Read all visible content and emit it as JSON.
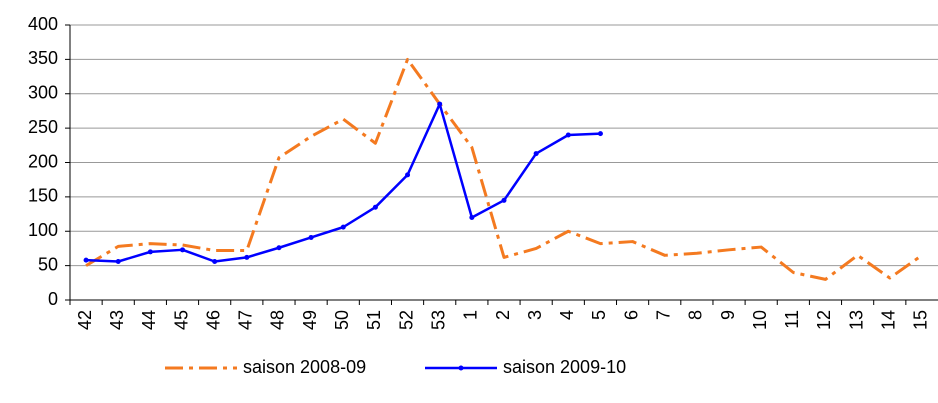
{
  "chart_data": {
    "type": "line",
    "categories": [
      "42",
      "43",
      "44",
      "45",
      "46",
      "47",
      "48",
      "49",
      "50",
      "51",
      "52",
      "53",
      "1",
      "2",
      "3",
      "4",
      "5",
      "6",
      "7",
      "8",
      "9",
      "10",
      "11",
      "12",
      "13",
      "14",
      "15"
    ],
    "series": [
      {
        "name": "saison 2008-09",
        "color": "#f47a20",
        "dash": "dash-dot",
        "values": [
          50,
          78,
          82,
          80,
          72,
          72,
          207,
          238,
          263,
          228,
          350,
          285,
          222,
          62,
          75,
          100,
          82,
          85,
          65,
          68,
          73,
          77,
          40,
          30,
          65,
          32,
          65
        ]
      },
      {
        "name": "saison 2009-10",
        "color": "#0000ff",
        "dash": "solid",
        "values": [
          58,
          56,
          70,
          73,
          56,
          62,
          76,
          91,
          106,
          135,
          182,
          285,
          120,
          145,
          213,
          240,
          242,
          null,
          null,
          null,
          null,
          null,
          null,
          null,
          null,
          null,
          null
        ]
      }
    ],
    "ylim": [
      0,
      400
    ],
    "yticks": [
      0,
      50,
      100,
      150,
      200,
      250,
      300,
      350,
      400
    ],
    "grid": true,
    "legend": "bottom"
  }
}
